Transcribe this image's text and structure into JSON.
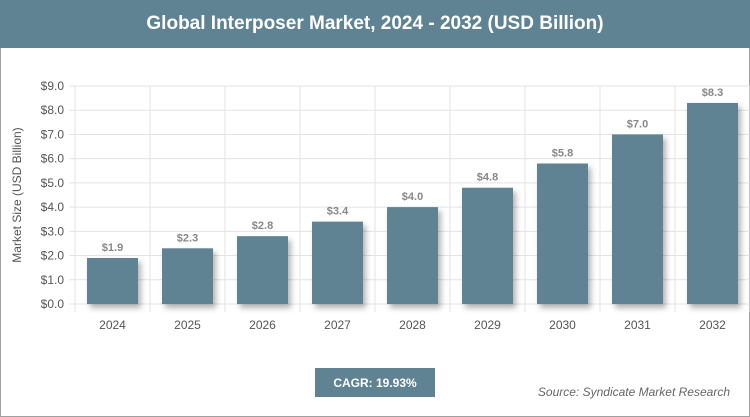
{
  "header": {
    "title": "Global Interposer Market, 2024 - 2032 (USD Billion)"
  },
  "cagr_label": "CAGR: 19.93%",
  "source": "Source: Syndicate Market Research",
  "colors": {
    "bar": "#5f8393",
    "header": "#5f8393"
  },
  "chart_data": {
    "type": "bar",
    "title": "Global Interposer Market, 2024 - 2032 (USD Billion)",
    "xlabel": "",
    "ylabel": "Market Size (USD Billion)",
    "categories": [
      "2024",
      "2025",
      "2026",
      "2027",
      "2028",
      "2029",
      "2030",
      "2031",
      "2032"
    ],
    "values": [
      1.9,
      2.3,
      2.8,
      3.4,
      4.0,
      4.8,
      5.8,
      7.0,
      8.3
    ],
    "data_labels": [
      "$1.9",
      "$2.3",
      "$2.8",
      "$3.4",
      "$4.0",
      "$4.8",
      "$5.8",
      "$7.0",
      "$8.3"
    ],
    "ylim": [
      0,
      9
    ],
    "yticks": [
      "$0.0",
      "$1.0",
      "$2.0",
      "$3.0",
      "$4.0",
      "$5.0",
      "$6.0",
      "$7.0",
      "$8.0",
      "$9.0"
    ],
    "grid": true,
    "legend": "none"
  }
}
